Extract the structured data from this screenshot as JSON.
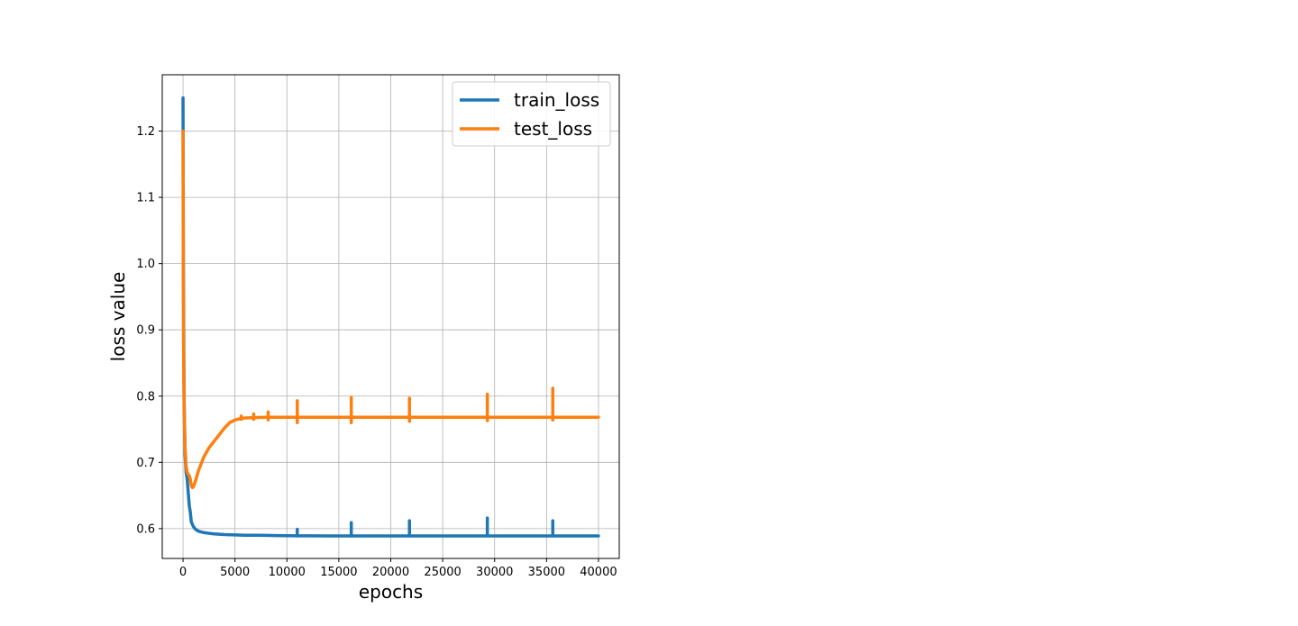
{
  "chart_data": {
    "type": "line",
    "title": "",
    "xlabel": "epochs",
    "ylabel": "loss value",
    "xlim": [
      -2000,
      42000
    ],
    "ylim": [
      0.555,
      1.285
    ],
    "xticks": [
      0,
      5000,
      10000,
      15000,
      20000,
      25000,
      30000,
      35000,
      40000
    ],
    "xtick_labels": [
      "0",
      "5000",
      "10000",
      "15000",
      "20000",
      "25000",
      "30000",
      "35000",
      "40000"
    ],
    "yticks": [
      0.6,
      0.7,
      0.8,
      0.9,
      1.0,
      1.1,
      1.2
    ],
    "ytick_labels": [
      "0.6",
      "0.7",
      "0.8",
      "0.9",
      "1.0",
      "1.1",
      "1.2"
    ],
    "grid": true,
    "legend_position": "top-right",
    "series": [
      {
        "name": "train_loss",
        "color": "#1f77b4",
        "x": [
          0,
          20,
          50,
          100,
          200,
          300,
          400,
          500,
          600,
          700,
          800,
          1000,
          1200,
          1500,
          2000,
          2500,
          3000,
          4000,
          5000,
          6000,
          7000,
          8000,
          9000,
          10000,
          11000,
          12000,
          14000,
          16000,
          18000,
          20000,
          22000,
          24000,
          26000,
          28000,
          30000,
          32000,
          34000,
          36000,
          38000,
          40000
        ],
        "y": [
          1.25,
          1.1,
          0.95,
          0.8,
          0.71,
          0.685,
          0.675,
          0.655,
          0.635,
          0.625,
          0.61,
          0.603,
          0.599,
          0.596,
          0.594,
          0.593,
          0.592,
          0.591,
          0.5905,
          0.59,
          0.59,
          0.5898,
          0.5895,
          0.5893,
          0.5892,
          0.5891,
          0.589,
          0.589,
          0.589,
          0.589,
          0.589,
          0.589,
          0.589,
          0.589,
          0.589,
          0.589,
          0.589,
          0.589,
          0.589,
          0.589
        ],
        "spikes": [
          {
            "x": 11000,
            "y_max": 0.599
          },
          {
            "x": 16200,
            "y_max": 0.609
          },
          {
            "x": 21800,
            "y_max": 0.612
          },
          {
            "x": 29300,
            "y_max": 0.616
          },
          {
            "x": 35600,
            "y_max": 0.612
          }
        ]
      },
      {
        "name": "test_loss",
        "color": "#ff7f0e",
        "x": [
          0,
          20,
          50,
          100,
          200,
          300,
          400,
          500,
          600,
          700,
          800,
          900,
          1000,
          1200,
          1500,
          2000,
          2500,
          3000,
          3500,
          4000,
          4500,
          5000,
          5500,
          6000,
          7000,
          8000,
          10000,
          12000,
          14000,
          16000,
          18000,
          20000,
          22000,
          24000,
          26000,
          28000,
          30000,
          32000,
          34000,
          36000,
          38000,
          40000
        ],
        "y": [
          1.2,
          1.0,
          0.88,
          0.78,
          0.72,
          0.695,
          0.685,
          0.682,
          0.68,
          0.675,
          0.665,
          0.662,
          0.663,
          0.672,
          0.688,
          0.708,
          0.722,
          0.732,
          0.742,
          0.752,
          0.76,
          0.764,
          0.766,
          0.767,
          0.7675,
          0.768,
          0.768,
          0.768,
          0.768,
          0.768,
          0.768,
          0.768,
          0.768,
          0.768,
          0.768,
          0.768,
          0.768,
          0.768,
          0.768,
          0.768,
          0.768,
          0.768
        ],
        "spikes": [
          {
            "x": 11000,
            "y_min": 0.76,
            "y_max": 0.793
          },
          {
            "x": 16200,
            "y_min": 0.76,
            "y_max": 0.798
          },
          {
            "x": 21800,
            "y_min": 0.762,
            "y_max": 0.797
          },
          {
            "x": 29300,
            "y_min": 0.763,
            "y_max": 0.803
          },
          {
            "x": 35600,
            "y_min": 0.764,
            "y_max": 0.812
          },
          {
            "x": 8200,
            "y_min": 0.764,
            "y_max": 0.776
          },
          {
            "x": 6800,
            "y_min": 0.765,
            "y_max": 0.773
          },
          {
            "x": 5600,
            "y_min": 0.765,
            "y_max": 0.77
          }
        ]
      }
    ]
  }
}
